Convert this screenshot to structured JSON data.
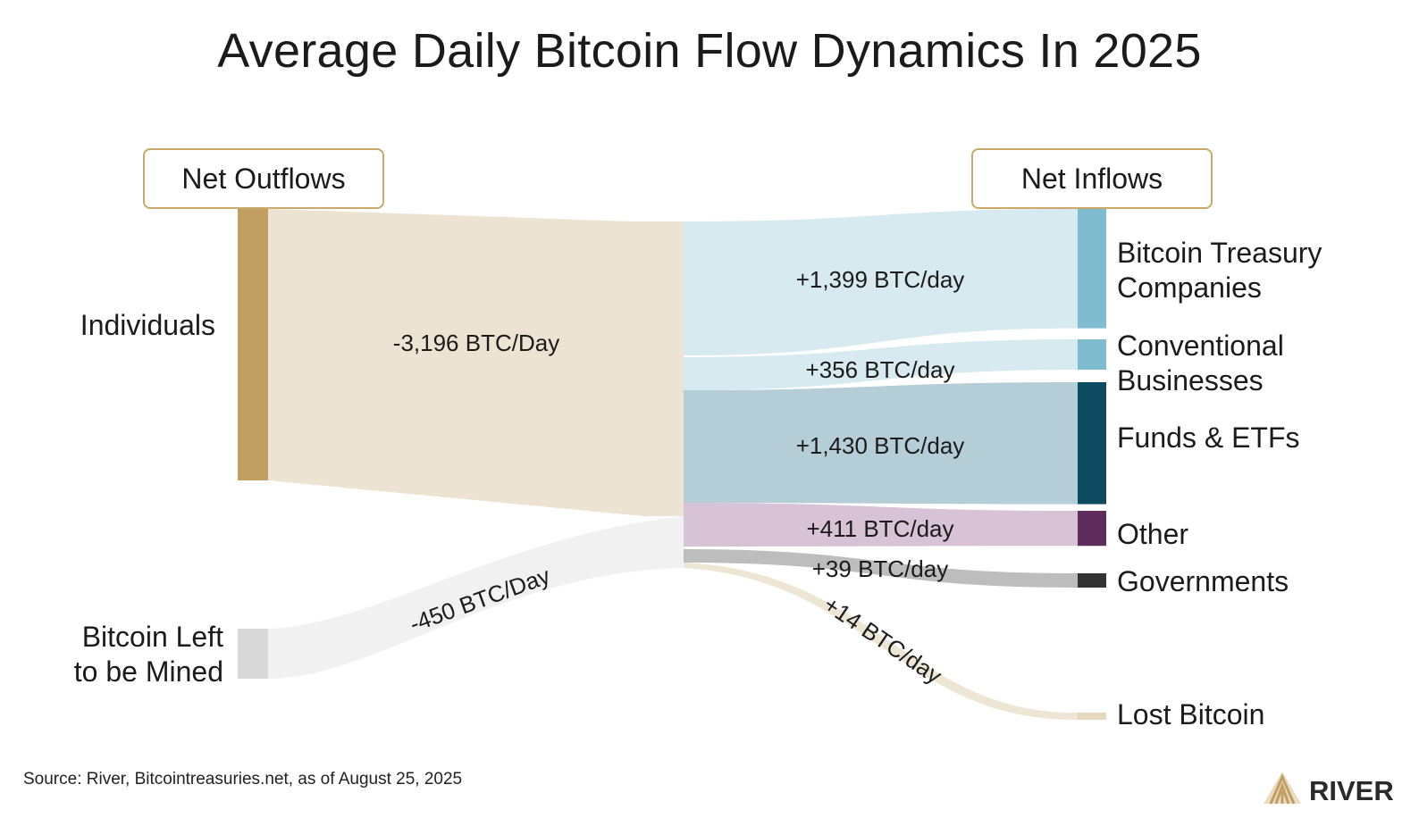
{
  "title": "Average Daily Bitcoin Flow Dynamics In 2025",
  "headers": {
    "outflows": "Net Outflows",
    "inflows": "Net Inflows"
  },
  "sources": [
    {
      "id": "individuals",
      "label_lines": [
        "Individuals"
      ],
      "value": -3196,
      "flow_label": "-3,196 BTC/Day",
      "color": "#c29e62",
      "band_color": "#ede3d3"
    },
    {
      "id": "mined",
      "label_lines": [
        "Bitcoin Left",
        "to be Mined"
      ],
      "value": -450,
      "flow_label": "-450 BTC/Day",
      "color": "#d8d8d8",
      "band_color": "#f1f1f1"
    }
  ],
  "targets": [
    {
      "id": "treasury",
      "label_lines": [
        "Bitcoin Treasury",
        "Companies"
      ],
      "value": 1399,
      "flow_label": "+1,399 BTC/day",
      "color": "#7fbcd0",
      "band_color": "#d6eaf0"
    },
    {
      "id": "conventional",
      "label_lines": [
        "Conventional",
        "Businesses"
      ],
      "value": 356,
      "flow_label": "+356 BTC/day",
      "color": "#7fbcd0",
      "band_color": "#d6eaf0"
    },
    {
      "id": "funds",
      "label_lines": [
        "Funds & ETFs"
      ],
      "value": 1430,
      "flow_label": "+1,430 BTC/day",
      "color": "#0c4a60",
      "band_color": "#b5cdd6"
    },
    {
      "id": "other",
      "label_lines": [
        "Other"
      ],
      "value": 411,
      "flow_label": "+411 BTC/day",
      "color": "#5f2c5e",
      "band_color": "#d7c2d6"
    },
    {
      "id": "governments",
      "label_lines": [
        "Governments"
      ],
      "value": 39,
      "flow_label": "+39 BTC/day",
      "color": "#333333",
      "band_color": "#bdbdbd"
    },
    {
      "id": "lost",
      "label_lines": [
        "Lost Bitcoin"
      ],
      "value": 14,
      "flow_label": "+14 BTC/day",
      "color": "#e4d8be",
      "band_color": "#eee6d4"
    }
  ],
  "source_note": "Source: River, Bitcointreasuries.net, as of August 25, 2025",
  "brand": {
    "name": "RIVER",
    "color": "#c29e62"
  }
}
